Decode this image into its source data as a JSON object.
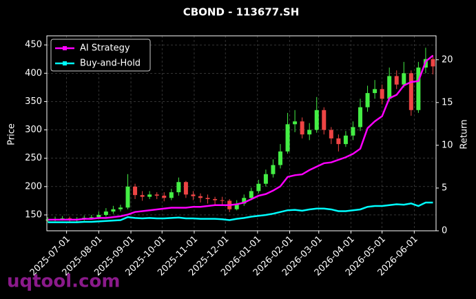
{
  "chart_data": {
    "type": "candlestick",
    "title": "CBOND - 113677.SH",
    "ylabel": "Price",
    "y2label": "Return",
    "watermark": "uqtool.com",
    "up_color": "#44ee44",
    "down_color": "#ee4444",
    "grid": true,
    "legend": "upper left",
    "x": [
      "2025-06-13",
      "2025-06-20",
      "2025-06-27",
      "2025-07-04",
      "2025-07-11",
      "2025-07-18",
      "2025-07-25",
      "2025-08-01",
      "2025-08-08",
      "2025-08-15",
      "2025-08-22",
      "2025-08-29",
      "2025-09-05",
      "2025-09-12",
      "2025-09-19",
      "2025-09-26",
      "2025-10-03",
      "2025-10-10",
      "2025-10-17",
      "2025-10-24",
      "2025-10-31",
      "2025-11-07",
      "2025-11-14",
      "2025-11-21",
      "2025-11-28",
      "2025-12-05",
      "2025-12-12",
      "2025-12-19",
      "2025-12-26",
      "2026-01-02",
      "2026-01-09",
      "2026-01-16",
      "2026-01-23",
      "2026-01-30",
      "2026-02-06",
      "2026-02-13",
      "2026-02-20",
      "2026-02-27",
      "2026-03-06",
      "2026-03-13",
      "2026-03-20",
      "2026-03-27",
      "2026-04-03",
      "2026-04-10",
      "2026-04-17",
      "2026-04-24",
      "2026-05-01",
      "2026-05-08",
      "2026-05-15",
      "2026-05-22",
      "2026-05-29",
      "2026-06-05",
      "2026-06-12",
      "2026-06-19"
    ],
    "open": [
      140,
      142,
      143,
      144,
      141,
      143,
      145,
      146,
      150,
      156,
      160,
      163,
      200,
      185,
      182,
      186,
      184,
      180,
      190,
      208,
      186,
      183,
      180,
      178,
      176,
      175,
      160,
      170,
      180,
      192,
      205,
      222,
      238,
      262,
      310,
      315,
      292,
      300,
      335,
      300,
      285,
      275,
      290,
      305,
      340,
      365,
      372,
      355,
      395,
      380,
      400,
      335,
      410,
      425
    ],
    "high": [
      146,
      147,
      148,
      147,
      146,
      149,
      150,
      156,
      162,
      166,
      168,
      222,
      205,
      192,
      192,
      190,
      190,
      196,
      216,
      210,
      192,
      188,
      186,
      182,
      182,
      178,
      176,
      186,
      198,
      212,
      230,
      248,
      275,
      330,
      335,
      322,
      312,
      358,
      340,
      305,
      292,
      298,
      315,
      355,
      378,
      388,
      380,
      410,
      405,
      420,
      405,
      420,
      445,
      432
    ],
    "low": [
      137,
      139,
      140,
      138,
      138,
      140,
      142,
      143,
      147,
      152,
      156,
      160,
      178,
      175,
      178,
      178,
      174,
      176,
      184,
      180,
      176,
      172,
      170,
      168,
      168,
      155,
      158,
      166,
      176,
      188,
      200,
      216,
      232,
      258,
      296,
      285,
      282,
      295,
      292,
      275,
      262,
      270,
      282,
      298,
      332,
      355,
      345,
      350,
      372,
      375,
      325,
      330,
      400,
      398
    ],
    "close": [
      142,
      143,
      144,
      141,
      143,
      145,
      146,
      150,
      156,
      160,
      163,
      200,
      185,
      182,
      186,
      184,
      180,
      190,
      208,
      186,
      183,
      180,
      178,
      176,
      175,
      160,
      170,
      180,
      192,
      205,
      222,
      238,
      262,
      310,
      315,
      292,
      300,
      335,
      300,
      285,
      275,
      290,
      305,
      340,
      365,
      372,
      355,
      395,
      380,
      400,
      335,
      410,
      425,
      412
    ],
    "series": [
      {
        "name": "AI Strategy",
        "color": "#ff00ff",
        "axis": "y2",
        "values": [
          1.3,
          1.3,
          1.3,
          1.3,
          1.3,
          1.4,
          1.4,
          1.5,
          1.5,
          1.6,
          1.7,
          1.9,
          2.2,
          2.3,
          2.4,
          2.5,
          2.6,
          2.7,
          2.7,
          2.7,
          2.8,
          2.8,
          2.9,
          3.0,
          3.0,
          3.0,
          3.1,
          3.3,
          3.7,
          4.1,
          4.3,
          4.7,
          5.2,
          6.3,
          6.5,
          6.6,
          7.1,
          7.5,
          7.9,
          8.0,
          8.3,
          8.6,
          9.0,
          9.6,
          12.0,
          12.8,
          13.4,
          15.5,
          15.9,
          17.0,
          17.4,
          17.5,
          19.8,
          20.5
        ]
      },
      {
        "name": "Buy-and-Hold",
        "color": "#00ffff",
        "axis": "y2",
        "values": [
          1.0,
          1.0,
          1.0,
          1.0,
          1.0,
          1.05,
          1.05,
          1.1,
          1.15,
          1.2,
          1.25,
          1.6,
          1.5,
          1.45,
          1.5,
          1.45,
          1.45,
          1.5,
          1.55,
          1.45,
          1.45,
          1.4,
          1.4,
          1.4,
          1.35,
          1.25,
          1.4,
          1.5,
          1.65,
          1.75,
          1.85,
          2.0,
          2.2,
          2.4,
          2.45,
          2.35,
          2.5,
          2.6,
          2.6,
          2.5,
          2.3,
          2.3,
          2.4,
          2.5,
          2.8,
          2.9,
          2.9,
          3.0,
          3.1,
          3.05,
          3.2,
          2.9,
          3.3,
          3.3
        ]
      }
    ],
    "xlim": [
      "2025-06-12",
      "2026-06-22"
    ],
    "xticks": [
      "2025-07-01",
      "2025-08-01",
      "2025-09-01",
      "2025-10-01",
      "2025-11-01",
      "2025-12-01",
      "2026-01-01",
      "2026-02-01",
      "2026-03-01",
      "2026-04-01",
      "2026-05-01",
      "2026-06-01"
    ],
    "ylim": [
      122,
      466
    ],
    "yticks": [
      150,
      200,
      250,
      300,
      350,
      400,
      450
    ],
    "y2lim": [
      0,
      22.8
    ],
    "y2ticks": [
      0,
      5,
      10,
      15,
      20
    ]
  }
}
